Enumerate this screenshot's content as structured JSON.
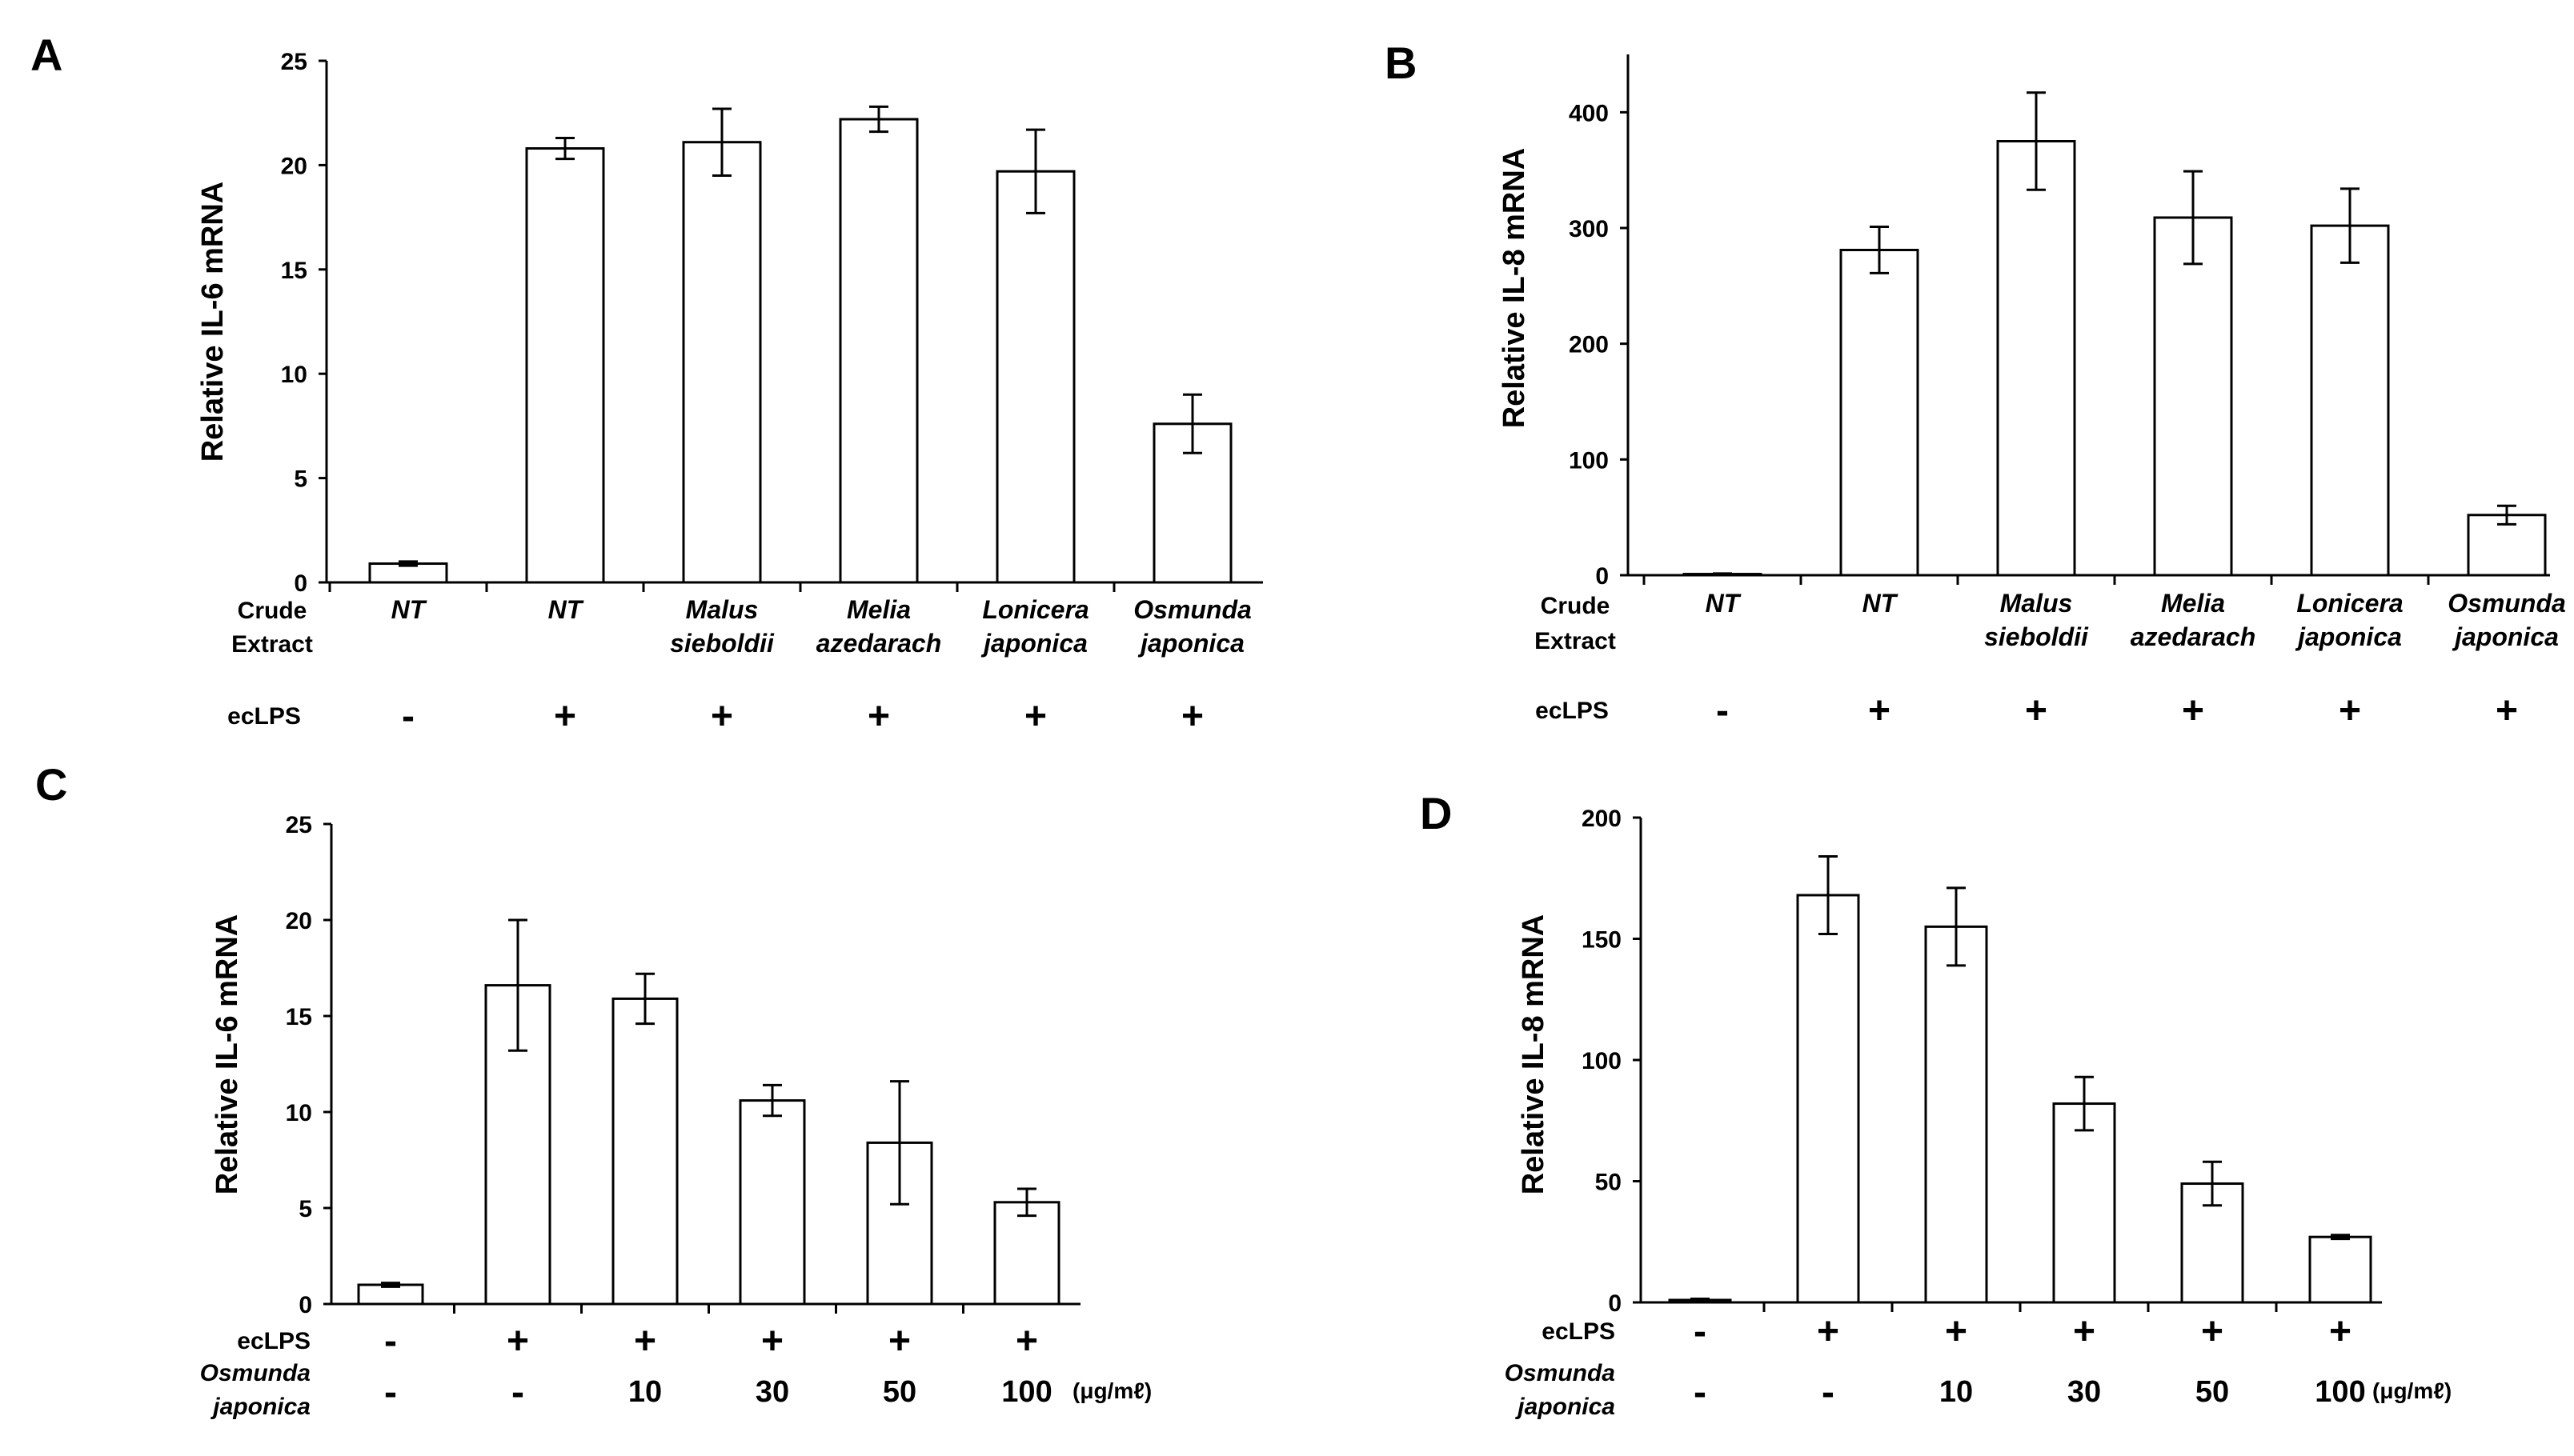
{
  "chart_data": [
    {
      "panel": "A",
      "type": "bar",
      "ylabel": "Relative IL-6 mRNA",
      "ylim": [
        0,
        25
      ],
      "yticks": [
        0,
        5,
        10,
        15,
        20,
        25
      ],
      "row_titles": [
        "Crude\nExtract",
        "ecLPS"
      ],
      "categories": [
        {
          "line1": "NT",
          "line2": ""
        },
        {
          "line1": "NT",
          "line2": ""
        },
        {
          "line1": "Malus",
          "line2": "sieboldii"
        },
        {
          "line1": "Melia",
          "line2": "azedarach"
        },
        {
          "line1": "Lonicera",
          "line2": "japonica"
        },
        {
          "line1": "Osmunda",
          "line2": "japonica"
        }
      ],
      "ecLPS": [
        "-",
        "+",
        "+",
        "+",
        "+",
        "+"
      ],
      "values": [
        0.9,
        20.8,
        21.1,
        22.2,
        19.7,
        7.6
      ],
      "errors": [
        0.1,
        0.5,
        1.6,
        0.6,
        2.0,
        1.4
      ]
    },
    {
      "panel": "B",
      "type": "bar",
      "ylabel": "Relative IL-8 mRNA",
      "ylim": [
        0,
        450
      ],
      "yticks": [
        0,
        100,
        200,
        300,
        400
      ],
      "row_titles": [
        "Crude\nExtract",
        "ecLPS"
      ],
      "categories": [
        {
          "line1": "NT",
          "line2": ""
        },
        {
          "line1": "NT",
          "line2": ""
        },
        {
          "line1": "Malus",
          "line2": "sieboldii"
        },
        {
          "line1": "Melia",
          "line2": "azedarach"
        },
        {
          "line1": "Lonicera",
          "line2": "japonica"
        },
        {
          "line1": "Osmunda",
          "line2": "japonica"
        }
      ],
      "ecLPS": [
        "-",
        "+",
        "+",
        "+",
        "+",
        "+"
      ],
      "values": [
        1,
        281,
        375,
        309,
        302,
        52
      ],
      "errors": [
        0.5,
        20,
        42,
        40,
        32,
        8
      ]
    },
    {
      "panel": "C",
      "type": "bar",
      "ylabel": "Relative IL-6 mRNA",
      "ylim": [
        0,
        25
      ],
      "yticks": [
        0,
        5,
        10,
        15,
        20,
        25
      ],
      "row_titles": [
        "ecLPS",
        "Osmunda\njaponica"
      ],
      "ecLPS": [
        "-",
        "+",
        "+",
        "+",
        "+",
        "+"
      ],
      "dose": [
        "-",
        "-",
        "10",
        "30",
        "50",
        "100"
      ],
      "unit": "(μg/mℓ)",
      "values": [
        1.0,
        16.6,
        15.9,
        10.6,
        8.4,
        5.3
      ],
      "errors": [
        0.1,
        3.4,
        1.3,
        0.8,
        3.2,
        0.7
      ]
    },
    {
      "panel": "D",
      "type": "bar",
      "ylabel": "Relative IL-8 mRNA",
      "ylim": [
        0,
        200
      ],
      "yticks": [
        0,
        50,
        100,
        150,
        200
      ],
      "row_titles": [
        "ecLPS",
        "Osmunda\njaponica"
      ],
      "ecLPS": [
        "-",
        "+",
        "+",
        "+",
        "+",
        "+"
      ],
      "dose": [
        "-",
        "-",
        "10",
        "30",
        "50",
        "100"
      ],
      "unit": "(μg/mℓ)",
      "values": [
        1,
        168,
        155,
        82,
        49,
        27
      ],
      "errors": [
        0.5,
        16,
        16,
        11,
        9,
        0.8
      ]
    }
  ]
}
